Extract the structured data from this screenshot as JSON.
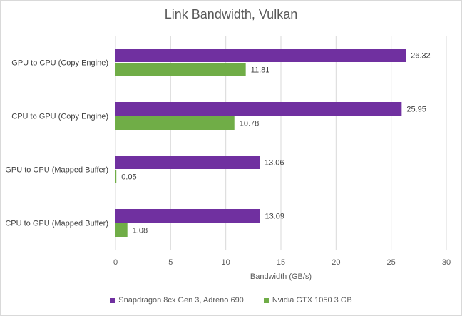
{
  "chart_data": {
    "type": "bar",
    "orientation": "horizontal",
    "title": "Link Bandwidth, Vulkan",
    "xlabel": "Bandwidth (GB/s)",
    "ylabel": "",
    "xlim": [
      0,
      30
    ],
    "xticks": [
      0,
      5,
      10,
      15,
      20,
      25,
      30
    ],
    "grid": true,
    "legend_position": "bottom",
    "categories": [
      "GPU to CPU (Copy Engine)",
      "CPU to GPU (Copy Engine)",
      "GPU to CPU (Mapped Buffer)",
      "CPU to GPU (Mapped Buffer)"
    ],
    "series": [
      {
        "name": "Snapdragon 8cx Gen 3, Adreno 690",
        "color": "#7030a0",
        "values": [
          26.32,
          25.95,
          13.06,
          13.09
        ],
        "labels": [
          "26.32",
          "25.95",
          "13.06",
          "13.09"
        ]
      },
      {
        "name": "Nvidia GTX 1050 3 GB",
        "color": "#70ad47",
        "values": [
          11.81,
          10.78,
          0.05,
          1.08
        ],
        "labels": [
          "11.81",
          "10.78",
          "0.05",
          "1.08"
        ]
      }
    ]
  }
}
